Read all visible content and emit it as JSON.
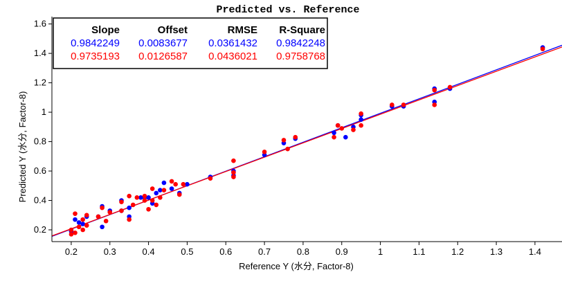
{
  "chart_data": {
    "type": "scatter",
    "title": "Predicted vs. Reference",
    "xlabel": "Reference Y (水分, Factor-8)",
    "ylabel": "Predicted Y (水分, Factor-8)",
    "xlim": [
      0.15,
      1.47
    ],
    "ylim": [
      0.12,
      1.65
    ],
    "xticks": [
      "0.2",
      "0.3",
      "0.4",
      "0.5",
      "0.6",
      "0.7",
      "0.8",
      "0.9",
      "1",
      "1.1",
      "1.2",
      "1.3",
      "1.4"
    ],
    "yticks": [
      "0.2",
      "0.4",
      "0.6",
      "0.8",
      "1",
      "1.2",
      "1.4",
      "1.6"
    ],
    "colors": {
      "calibration": "#0000ff",
      "validation": "#ff0000"
    },
    "stats_table": {
      "headers": [
        "Slope",
        "Offset",
        "RMSE",
        "R-Square"
      ],
      "rows": [
        {
          "color": "#0000ff",
          "values": [
            "0.9842249",
            "0.0083677",
            "0.0361432",
            "0.9842248"
          ]
        },
        {
          "color": "#ff0000",
          "values": [
            "0.9735193",
            "0.0126587",
            "0.0436021",
            "0.9758768"
          ]
        }
      ]
    },
    "series": [
      {
        "color": "#0000ff",
        "fit": {
          "slope": 0.9842249,
          "offset": 0.0083677
        },
        "points": [
          [
            0.2,
            0.19
          ],
          [
            0.21,
            0.27
          ],
          [
            0.22,
            0.25
          ],
          [
            0.23,
            0.24
          ],
          [
            0.24,
            0.29
          ],
          [
            0.27,
            0.29
          ],
          [
            0.28,
            0.36
          ],
          [
            0.28,
            0.22
          ],
          [
            0.3,
            0.33
          ],
          [
            0.33,
            0.33
          ],
          [
            0.33,
            0.4
          ],
          [
            0.35,
            0.29
          ],
          [
            0.35,
            0.35
          ],
          [
            0.38,
            0.42
          ],
          [
            0.39,
            0.42
          ],
          [
            0.4,
            0.42
          ],
          [
            0.41,
            0.38
          ],
          [
            0.42,
            0.45
          ],
          [
            0.43,
            0.47
          ],
          [
            0.44,
            0.52
          ],
          [
            0.46,
            0.48
          ],
          [
            0.48,
            0.45
          ],
          [
            0.5,
            0.51
          ],
          [
            0.56,
            0.56
          ],
          [
            0.62,
            0.6
          ],
          [
            0.62,
            0.57
          ],
          [
            0.7,
            0.71
          ],
          [
            0.75,
            0.79
          ],
          [
            0.78,
            0.82
          ],
          [
            0.88,
            0.86
          ],
          [
            0.89,
            0.91
          ],
          [
            0.91,
            0.83
          ],
          [
            0.93,
            0.9
          ],
          [
            0.95,
            0.98
          ],
          [
            0.95,
            0.95
          ],
          [
            1.03,
            1.04
          ],
          [
            1.06,
            1.04
          ],
          [
            1.14,
            1.16
          ],
          [
            1.14,
            1.07
          ],
          [
            1.18,
            1.16
          ],
          [
            1.42,
            1.44
          ]
        ]
      },
      {
        "color": "#ff0000",
        "fit": {
          "slope": 0.9735193,
          "offset": 0.0126587
        },
        "points": [
          [
            0.2,
            0.2
          ],
          [
            0.2,
            0.17
          ],
          [
            0.21,
            0.31
          ],
          [
            0.21,
            0.18
          ],
          [
            0.22,
            0.22
          ],
          [
            0.23,
            0.27
          ],
          [
            0.23,
            0.2
          ],
          [
            0.24,
            0.3
          ],
          [
            0.24,
            0.23
          ],
          [
            0.27,
            0.29
          ],
          [
            0.28,
            0.35
          ],
          [
            0.29,
            0.26
          ],
          [
            0.3,
            0.32
          ],
          [
            0.33,
            0.39
          ],
          [
            0.33,
            0.33
          ],
          [
            0.35,
            0.43
          ],
          [
            0.35,
            0.27
          ],
          [
            0.36,
            0.37
          ],
          [
            0.37,
            0.42
          ],
          [
            0.39,
            0.43
          ],
          [
            0.39,
            0.4
          ],
          [
            0.4,
            0.34
          ],
          [
            0.41,
            0.48
          ],
          [
            0.41,
            0.4
          ],
          [
            0.42,
            0.37
          ],
          [
            0.43,
            0.42
          ],
          [
            0.44,
            0.47
          ],
          [
            0.46,
            0.53
          ],
          [
            0.47,
            0.51
          ],
          [
            0.48,
            0.44
          ],
          [
            0.49,
            0.51
          ],
          [
            0.56,
            0.55
          ],
          [
            0.62,
            0.67
          ],
          [
            0.62,
            0.59
          ],
          [
            0.62,
            0.56
          ],
          [
            0.7,
            0.73
          ],
          [
            0.75,
            0.81
          ],
          [
            0.76,
            0.75
          ],
          [
            0.78,
            0.83
          ],
          [
            0.88,
            0.83
          ],
          [
            0.89,
            0.91
          ],
          [
            0.9,
            0.89
          ],
          [
            0.93,
            0.88
          ],
          [
            0.95,
            0.99
          ],
          [
            0.95,
            0.91
          ],
          [
            1.03,
            1.05
          ],
          [
            1.06,
            1.05
          ],
          [
            1.14,
            1.15
          ],
          [
            1.14,
            1.05
          ],
          [
            1.18,
            1.17
          ],
          [
            1.42,
            1.43
          ]
        ]
      }
    ]
  }
}
